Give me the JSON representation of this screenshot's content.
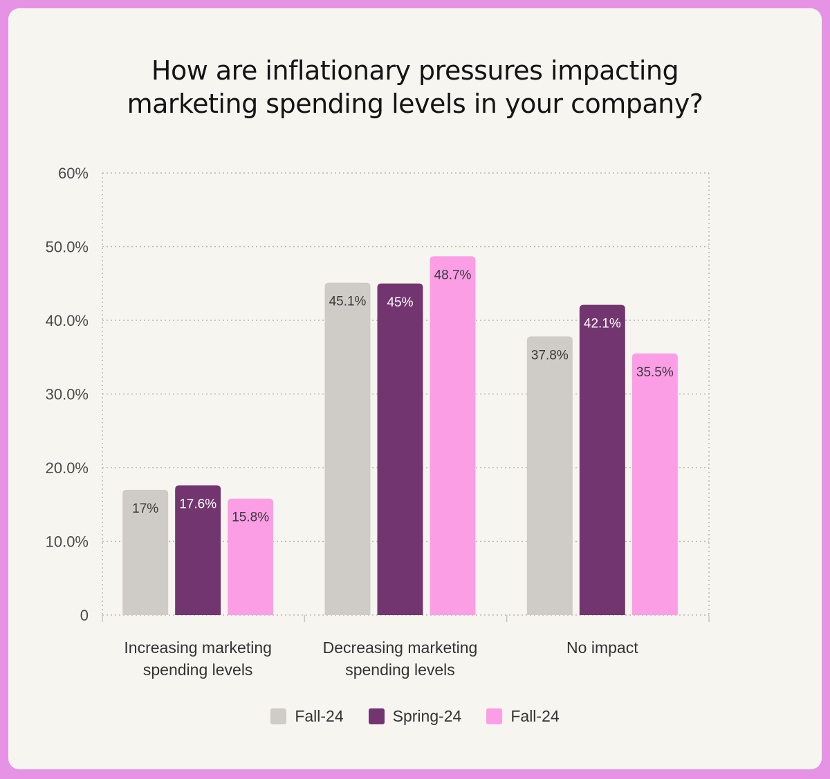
{
  "chart_data": {
    "type": "bar",
    "title": "How are inflationary pressures impacting marketing spending levels in your company?",
    "title_lines": [
      "How are inflationary pressures impacting",
      "marketing spending levels in your company?"
    ],
    "categories": [
      [
        "Increasing marketing",
        "spending levels"
      ],
      [
        "Decreasing marketing",
        "spending levels"
      ],
      [
        "No impact"
      ]
    ],
    "series": [
      {
        "name": "Fall-24",
        "color": "#cfccc8",
        "label_color": "#3a3a3a",
        "values": [
          17,
          45.1,
          37.8
        ],
        "labels": [
          "17%",
          "45.1%",
          "37.8%"
        ]
      },
      {
        "name": "Spring-24",
        "color": "#733570",
        "label_color": "#ffffff",
        "values": [
          17.6,
          45,
          42.1
        ],
        "labels": [
          "17.6%",
          "45%",
          "42.1%"
        ]
      },
      {
        "name": "Fall-24",
        "color": "#fb9ee6",
        "label_color": "#3a3a3a",
        "values": [
          15.8,
          48.7,
          35.5
        ],
        "labels": [
          "15.8%",
          "48.7%",
          "35.5%"
        ]
      }
    ],
    "yticks": [
      {
        "value": 0,
        "label": "0"
      },
      {
        "value": 10,
        "label": "10.0%"
      },
      {
        "value": 20,
        "label": "20.0%"
      },
      {
        "value": 30,
        "label": "30.0%"
      },
      {
        "value": 40,
        "label": "40.0%"
      },
      {
        "value": 50,
        "label": "50.0%"
      },
      {
        "value": 60,
        "label": "60%"
      }
    ],
    "ylim": [
      0,
      60
    ],
    "grid": true,
    "legend_position": "bottom-center",
    "xlabel": "",
    "ylabel": ""
  }
}
